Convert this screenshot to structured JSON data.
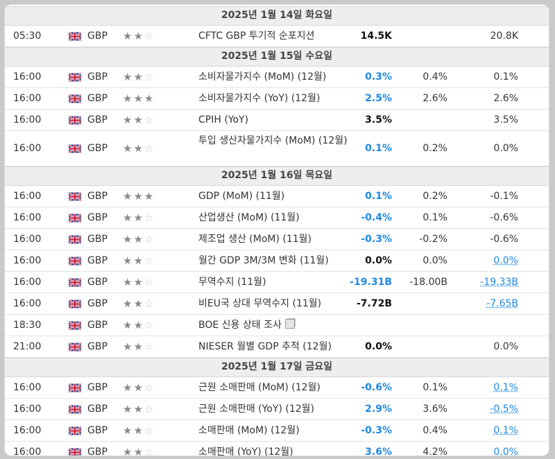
{
  "days": [
    {
      "date": "2025년 1월 14일 화요일",
      "events": [
        {
          "time": "05:30",
          "currency": "GBP",
          "stars": 2,
          "event": "CFTC GBP 투기적 순포지션",
          "actual": "14.5K",
          "actual_color": "black",
          "forecast": "",
          "previous": "20.8K",
          "previous_link": false,
          "tall": false,
          "icon": false
        }
      ]
    },
    {
      "date": "2025년 1월 15일 수요일",
      "events": [
        {
          "time": "16:00",
          "currency": "GBP",
          "stars": 2,
          "event": "소비자물가지수 (MoM) (12월)",
          "actual": "0.3%",
          "actual_color": "blue",
          "forecast": "0.4%",
          "previous": "0.1%",
          "previous_link": false,
          "tall": false,
          "icon": false
        },
        {
          "time": "16:00",
          "currency": "GBP",
          "stars": 3,
          "event": "소비자물가지수 (YoY) (12월)",
          "actual": "2.5%",
          "actual_color": "blue",
          "forecast": "2.6%",
          "previous": "2.6%",
          "previous_link": false,
          "tall": false,
          "icon": false
        },
        {
          "time": "16:00",
          "currency": "GBP",
          "stars": 2,
          "event": "CPIH (YoY)",
          "actual": "3.5%",
          "actual_color": "black",
          "forecast": "",
          "previous": "3.5%",
          "previous_link": false,
          "tall": false,
          "icon": false
        },
        {
          "time": "16:00",
          "currency": "GBP",
          "stars": 2,
          "event": "투입 생산자물가지수 (MoM) (12월)",
          "actual": "0.1%",
          "actual_color": "blue",
          "forecast": "0.2%",
          "previous": "0.0%",
          "previous_link": false,
          "tall": true,
          "icon": false
        }
      ]
    },
    {
      "date": "2025년 1월 16일 목요일",
      "events": [
        {
          "time": "16:00",
          "currency": "GBP",
          "stars": 3,
          "event": "GDP (MoM) (11월)",
          "actual": "0.1%",
          "actual_color": "blue",
          "forecast": "0.2%",
          "previous": "-0.1%",
          "previous_link": false,
          "tall": false,
          "icon": false
        },
        {
          "time": "16:00",
          "currency": "GBP",
          "stars": 2,
          "event": "산업생산 (MoM) (11월)",
          "actual": "-0.4%",
          "actual_color": "blue",
          "forecast": "0.1%",
          "previous": "-0.6%",
          "previous_link": false,
          "tall": false,
          "icon": false
        },
        {
          "time": "16:00",
          "currency": "GBP",
          "stars": 2,
          "event": "제조업 생산 (MoM) (11월)",
          "actual": "-0.3%",
          "actual_color": "blue",
          "forecast": "-0.2%",
          "previous": "-0.6%",
          "previous_link": false,
          "tall": false,
          "icon": false
        },
        {
          "time": "16:00",
          "currency": "GBP",
          "stars": 2,
          "event": "월간 GDP 3M/3M 변화 (11월)",
          "actual": "0.0%",
          "actual_color": "black",
          "forecast": "0.0%",
          "previous": "0.0%",
          "previous_link": true,
          "tall": false,
          "icon": false
        },
        {
          "time": "16:00",
          "currency": "GBP",
          "stars": 2,
          "event": "무역수지 (11월)",
          "actual": "-19.31B",
          "actual_color": "blue",
          "forecast": "-18.00B",
          "previous": "-19.33B",
          "previous_link": true,
          "tall": false,
          "icon": false
        },
        {
          "time": "16:00",
          "currency": "GBP",
          "stars": 2,
          "event": "비EU국 상대 무역수지 (11월)",
          "actual": "-7.72B",
          "actual_color": "black",
          "forecast": "",
          "previous": "-7.65B",
          "previous_link": true,
          "tall": false,
          "icon": false
        },
        {
          "time": "18:30",
          "currency": "GBP",
          "stars": 2,
          "event": "BOE 신용 상태 조사",
          "actual": "",
          "actual_color": "black",
          "forecast": "",
          "previous": "",
          "previous_link": false,
          "tall": false,
          "icon": true
        },
        {
          "time": "21:00",
          "currency": "GBP",
          "stars": 2,
          "event": "NIESER 월별 GDP 추적 (12월)",
          "actual": "0.0%",
          "actual_color": "black",
          "forecast": "",
          "previous": "0.0%",
          "previous_link": false,
          "tall": false,
          "icon": false
        }
      ]
    },
    {
      "date": "2025년 1월 17일 금요일",
      "events": [
        {
          "time": "16:00",
          "currency": "GBP",
          "stars": 2,
          "event": "근원 소매판매 (MoM) (12월)",
          "actual": "-0.6%",
          "actual_color": "blue",
          "forecast": "0.1%",
          "previous": "0.1%",
          "previous_link": true,
          "tall": false,
          "icon": false
        },
        {
          "time": "16:00",
          "currency": "GBP",
          "stars": 2,
          "event": "근원 소매판매 (YoY) (12월)",
          "actual": "2.9%",
          "actual_color": "blue",
          "forecast": "3.6%",
          "previous": "-0.5%",
          "previous_link": true,
          "tall": false,
          "icon": false
        },
        {
          "time": "16:00",
          "currency": "GBP",
          "stars": 2,
          "event": "소매판매 (MoM) (12월)",
          "actual": "-0.3%",
          "actual_color": "blue",
          "forecast": "0.4%",
          "previous": "0.1%",
          "previous_link": true,
          "tall": false,
          "icon": false
        },
        {
          "time": "16:00",
          "currency": "GBP",
          "stars": 2,
          "event": "소매판매 (YoY) (12월)",
          "actual": "3.6%",
          "actual_color": "blue",
          "forecast": "4.2%",
          "previous": "0.0%",
          "previous_link": true,
          "tall": false,
          "icon": false
        }
      ]
    }
  ]
}
